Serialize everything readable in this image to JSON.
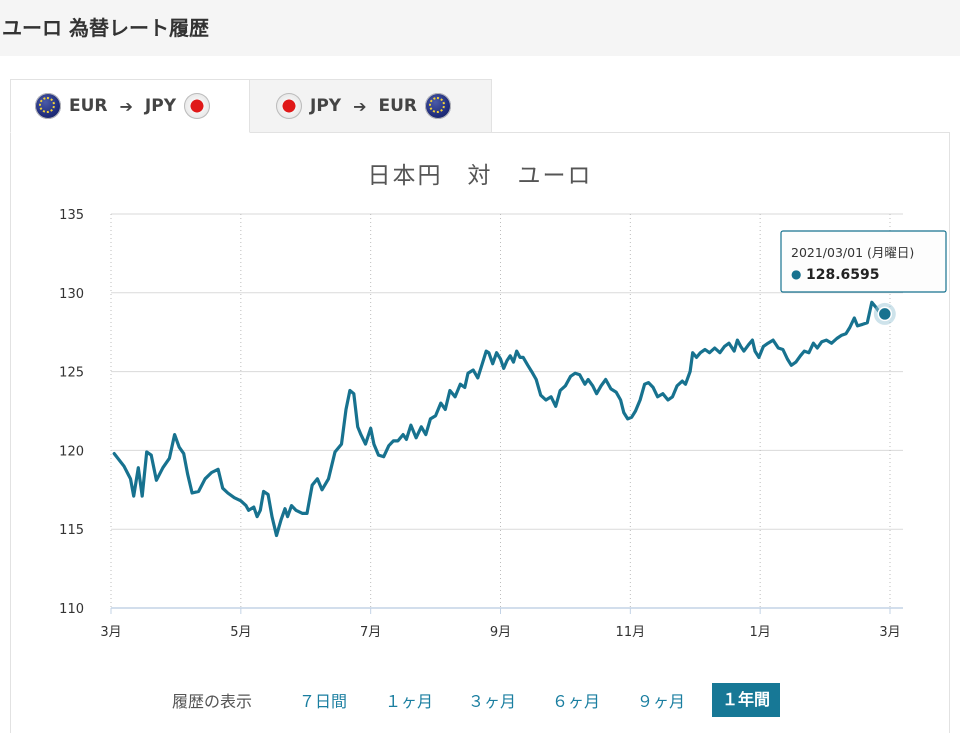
{
  "page": {
    "title": "ユーロ 為替レート履歴"
  },
  "tabs": [
    {
      "from": "EUR",
      "to": "JPY",
      "arrow": "➔"
    },
    {
      "from": "JPY",
      "to": "EUR",
      "arrow": "➔"
    }
  ],
  "colors": {
    "line": "#17728f",
    "grid": "#dadada",
    "axis": "#c3d3e6",
    "active_range": "#177896",
    "link": "#1a7ea0"
  },
  "tooltip": {
    "date": "2021/03/01 (月曜日)",
    "value": "128.6595",
    "marker": "●"
  },
  "footer": {
    "label": "履歴の表示",
    "ranges": [
      "７日間",
      "１ヶ月",
      "３ヶ月",
      "６ヶ月",
      "９ヶ月",
      "１年間"
    ],
    "selected": "１年間"
  },
  "chart_data": {
    "type": "line",
    "title": "日本円　対　ユーロ",
    "ylim": [
      110,
      135
    ],
    "yticks": [
      110,
      115,
      120,
      125,
      130,
      135
    ],
    "xlim": [
      0,
      12
    ],
    "xtick_labels": [
      {
        "x": 0,
        "label": "3月"
      },
      {
        "x": 2,
        "label": "5月"
      },
      {
        "x": 4,
        "label": "7月"
      },
      {
        "x": 6,
        "label": "9月"
      },
      {
        "x": 8,
        "label": "11月"
      },
      {
        "x": 10,
        "label": "1月"
      },
      {
        "x": 12,
        "label": "3月"
      }
    ],
    "grid": true,
    "series": [
      {
        "values": [
          [
            0.05,
            119.8
          ],
          [
            0.2,
            119.0
          ],
          [
            0.3,
            118.2
          ],
          [
            0.35,
            117.1
          ],
          [
            0.42,
            118.9
          ],
          [
            0.48,
            117.1
          ],
          [
            0.55,
            119.9
          ],
          [
            0.62,
            119.7
          ],
          [
            0.7,
            118.1
          ],
          [
            0.8,
            118.9
          ],
          [
            0.9,
            119.5
          ],
          [
            0.98,
            121.0
          ],
          [
            1.05,
            120.2
          ],
          [
            1.12,
            119.8
          ],
          [
            1.18,
            118.5
          ],
          [
            1.25,
            117.3
          ],
          [
            1.35,
            117.4
          ],
          [
            1.45,
            118.2
          ],
          [
            1.55,
            118.6
          ],
          [
            1.65,
            118.8
          ],
          [
            1.72,
            117.6
          ],
          [
            1.8,
            117.3
          ],
          [
            1.9,
            117.0
          ],
          [
            2.0,
            116.8
          ],
          [
            2.08,
            116.5
          ],
          [
            2.12,
            116.2
          ],
          [
            2.2,
            116.4
          ],
          [
            2.25,
            115.8
          ],
          [
            2.3,
            116.2
          ],
          [
            2.35,
            117.4
          ],
          [
            2.42,
            117.2
          ],
          [
            2.48,
            115.8
          ],
          [
            2.55,
            114.6
          ],
          [
            2.62,
            115.6
          ],
          [
            2.68,
            116.3
          ],
          [
            2.72,
            115.8
          ],
          [
            2.78,
            116.5
          ],
          [
            2.85,
            116.2
          ],
          [
            2.95,
            116.0
          ],
          [
            3.02,
            116.0
          ],
          [
            3.1,
            117.8
          ],
          [
            3.18,
            118.2
          ],
          [
            3.25,
            117.5
          ],
          [
            3.35,
            118.2
          ],
          [
            3.45,
            119.9
          ],
          [
            3.55,
            120.4
          ],
          [
            3.62,
            122.6
          ],
          [
            3.68,
            123.8
          ],
          [
            3.74,
            123.6
          ],
          [
            3.8,
            121.5
          ],
          [
            3.85,
            121.0
          ],
          [
            3.92,
            120.4
          ],
          [
            4.0,
            121.4
          ],
          [
            4.05,
            120.4
          ],
          [
            4.12,
            119.7
          ],
          [
            4.2,
            119.6
          ],
          [
            4.28,
            120.3
          ],
          [
            4.35,
            120.6
          ],
          [
            4.42,
            120.6
          ],
          [
            4.5,
            121.0
          ],
          [
            4.55,
            120.7
          ],
          [
            4.62,
            121.6
          ],
          [
            4.7,
            120.8
          ],
          [
            4.78,
            121.5
          ],
          [
            4.85,
            121.0
          ],
          [
            4.92,
            122.0
          ],
          [
            5.0,
            122.2
          ],
          [
            5.08,
            123.0
          ],
          [
            5.15,
            122.6
          ],
          [
            5.22,
            123.8
          ],
          [
            5.3,
            123.4
          ],
          [
            5.38,
            124.2
          ],
          [
            5.45,
            124.0
          ],
          [
            5.5,
            124.9
          ],
          [
            5.58,
            125.1
          ],
          [
            5.65,
            124.6
          ],
          [
            5.72,
            125.5
          ],
          [
            5.78,
            126.3
          ],
          [
            5.82,
            126.2
          ],
          [
            5.88,
            125.5
          ],
          [
            5.94,
            126.2
          ],
          [
            6.0,
            125.8
          ],
          [
            6.05,
            125.2
          ],
          [
            6.1,
            125.7
          ],
          [
            6.15,
            126.0
          ],
          [
            6.2,
            125.6
          ],
          [
            6.25,
            126.3
          ],
          [
            6.3,
            125.9
          ],
          [
            6.35,
            125.9
          ],
          [
            6.42,
            125.4
          ],
          [
            6.48,
            125.0
          ],
          [
            6.55,
            124.5
          ],
          [
            6.62,
            123.5
          ],
          [
            6.7,
            123.2
          ],
          [
            6.78,
            123.4
          ],
          [
            6.85,
            122.8
          ],
          [
            6.92,
            123.8
          ],
          [
            7.0,
            124.1
          ],
          [
            7.08,
            124.7
          ],
          [
            7.15,
            124.9
          ],
          [
            7.22,
            124.8
          ],
          [
            7.3,
            124.2
          ],
          [
            7.35,
            124.5
          ],
          [
            7.42,
            124.1
          ],
          [
            7.48,
            123.6
          ],
          [
            7.55,
            124.1
          ],
          [
            7.62,
            124.5
          ],
          [
            7.7,
            123.9
          ],
          [
            7.78,
            123.7
          ],
          [
            7.85,
            123.2
          ],
          [
            7.9,
            122.4
          ],
          [
            7.96,
            122.0
          ],
          [
            8.02,
            122.1
          ],
          [
            8.08,
            122.5
          ],
          [
            8.15,
            123.2
          ],
          [
            8.22,
            124.2
          ],
          [
            8.28,
            124.3
          ],
          [
            8.35,
            124.0
          ],
          [
            8.42,
            123.4
          ],
          [
            8.5,
            123.6
          ],
          [
            8.58,
            123.2
          ],
          [
            8.65,
            123.4
          ],
          [
            8.72,
            124.1
          ],
          [
            8.8,
            124.4
          ],
          [
            8.85,
            124.2
          ],
          [
            8.92,
            125.0
          ],
          [
            8.96,
            126.2
          ],
          [
            9.02,
            125.9
          ],
          [
            9.08,
            126.2
          ],
          [
            9.15,
            126.4
          ],
          [
            9.22,
            126.2
          ],
          [
            9.3,
            126.5
          ],
          [
            9.38,
            126.2
          ],
          [
            9.45,
            126.6
          ],
          [
            9.52,
            126.8
          ],
          [
            9.6,
            126.3
          ],
          [
            9.65,
            127.0
          ],
          [
            9.7,
            126.6
          ],
          [
            9.75,
            126.3
          ],
          [
            9.82,
            126.7
          ],
          [
            9.88,
            127.0
          ],
          [
            9.92,
            126.3
          ],
          [
            9.98,
            125.9
          ],
          [
            10.05,
            126.6
          ],
          [
            10.12,
            126.8
          ],
          [
            10.2,
            127.0
          ],
          [
            10.28,
            126.5
          ],
          [
            10.35,
            126.4
          ],
          [
            10.42,
            125.8
          ],
          [
            10.48,
            125.4
          ],
          [
            10.55,
            125.6
          ],
          [
            10.62,
            126.0
          ],
          [
            10.68,
            126.3
          ],
          [
            10.75,
            126.2
          ],
          [
            10.82,
            126.8
          ],
          [
            10.88,
            126.5
          ],
          [
            10.95,
            126.9
          ],
          [
            11.02,
            127.0
          ],
          [
            11.1,
            126.8
          ],
          [
            11.18,
            127.1
          ],
          [
            11.25,
            127.3
          ],
          [
            11.32,
            127.4
          ],
          [
            11.38,
            127.8
          ],
          [
            11.45,
            128.4
          ],
          [
            11.5,
            127.9
          ],
          [
            11.58,
            128.0
          ],
          [
            11.65,
            128.1
          ],
          [
            11.72,
            129.4
          ],
          [
            11.78,
            129.1
          ],
          [
            11.85,
            128.7
          ],
          [
            11.92,
            128.66
          ]
        ]
      }
    ]
  }
}
